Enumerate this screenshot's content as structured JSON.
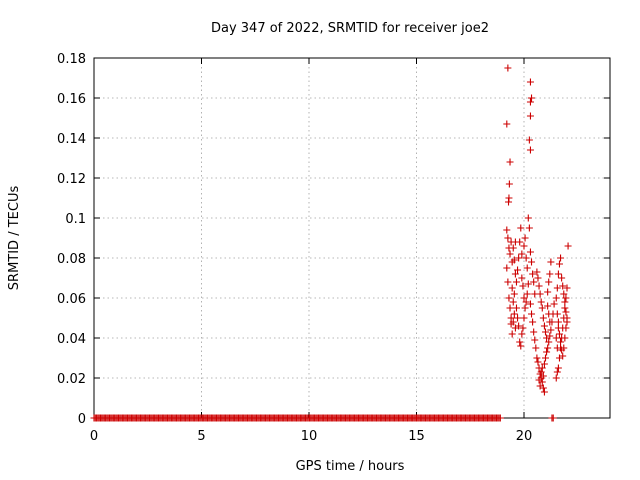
{
  "chart_data": {
    "type": "scatter",
    "title": "Day 347 of 2022, SRMTID for receiver joe2",
    "xlabel": "GPS time / hours",
    "ylabel": "SRMTID / TECUs",
    "xlim": [
      0,
      24
    ],
    "ylim": [
      0,
      0.18
    ],
    "xticks": [
      0,
      5,
      10,
      15,
      20
    ],
    "xtick_labels": [
      "0",
      "5",
      "10",
      "15",
      "20"
    ],
    "yticks": [
      0,
      0.02,
      0.04,
      0.06,
      0.08,
      0.1,
      0.12,
      0.14,
      0.16,
      0.18
    ],
    "ytick_labels": [
      "0",
      "0.02",
      "0.04",
      "0.06",
      "0.08",
      "0.1",
      "0.12",
      "0.14",
      "0.16",
      "0.18"
    ],
    "grid": true,
    "marker": "+",
    "marker_color": "#cc0000",
    "series": [
      {
        "name": "SRMTID",
        "baseline": {
          "description": "points at zero",
          "y": 0,
          "x_ranges": [
            [
              0.0,
              18.9
            ],
            [
              21.3,
              21.4
            ]
          ]
        },
        "points": [
          [
            19.25,
            0.175
          ],
          [
            19.2,
            0.147
          ],
          [
            19.35,
            0.128
          ],
          [
            19.32,
            0.117
          ],
          [
            19.28,
            0.108
          ],
          [
            19.3,
            0.11
          ],
          [
            19.2,
            0.094
          ],
          [
            19.25,
            0.09
          ],
          [
            19.3,
            0.085
          ],
          [
            19.35,
            0.082
          ],
          [
            19.4,
            0.088
          ],
          [
            19.45,
            0.078
          ],
          [
            19.5,
            0.085
          ],
          [
            19.55,
            0.079
          ],
          [
            19.6,
            0.072
          ],
          [
            19.2,
            0.075
          ],
          [
            19.25,
            0.068
          ],
          [
            19.3,
            0.06
          ],
          [
            19.35,
            0.055
          ],
          [
            19.4,
            0.05
          ],
          [
            19.45,
            0.065
          ],
          [
            19.5,
            0.058
          ],
          [
            19.55,
            0.052
          ],
          [
            19.6,
            0.045
          ],
          [
            19.4,
            0.047
          ],
          [
            19.45,
            0.042
          ],
          [
            19.5,
            0.048
          ],
          [
            19.55,
            0.062
          ],
          [
            19.65,
            0.068
          ],
          [
            19.7,
            0.074
          ],
          [
            19.75,
            0.08
          ],
          [
            19.8,
            0.088
          ],
          [
            19.85,
            0.095
          ],
          [
            19.9,
            0.07
          ],
          [
            19.95,
            0.066
          ],
          [
            20.0,
            0.06
          ],
          [
            19.65,
            0.055
          ],
          [
            19.7,
            0.05
          ],
          [
            19.75,
            0.046
          ],
          [
            19.8,
            0.038
          ],
          [
            19.85,
            0.036
          ],
          [
            19.9,
            0.042
          ],
          [
            19.95,
            0.045
          ],
          [
            20.0,
            0.05
          ],
          [
            20.05,
            0.055
          ],
          [
            20.1,
            0.058
          ],
          [
            20.15,
            0.062
          ],
          [
            20.2,
            0.067
          ],
          [
            20.0,
            0.086
          ],
          [
            20.05,
            0.09
          ],
          [
            20.1,
            0.08
          ],
          [
            20.15,
            0.075
          ],
          [
            19.9,
            0.082
          ],
          [
            19.6,
            0.088
          ],
          [
            20.3,
            0.168
          ],
          [
            20.35,
            0.16
          ],
          [
            20.3,
            0.158
          ],
          [
            20.3,
            0.151
          ],
          [
            20.25,
            0.139
          ],
          [
            20.3,
            0.134
          ],
          [
            20.2,
            0.1
          ],
          [
            20.25,
            0.095
          ],
          [
            20.3,
            0.083
          ],
          [
            20.35,
            0.078
          ],
          [
            20.4,
            0.072
          ],
          [
            20.45,
            0.068
          ],
          [
            20.5,
            0.062
          ],
          [
            20.3,
            0.057
          ],
          [
            20.35,
            0.052
          ],
          [
            20.4,
            0.048
          ],
          [
            20.45,
            0.043
          ],
          [
            20.5,
            0.039
          ],
          [
            20.55,
            0.035
          ],
          [
            20.6,
            0.03
          ],
          [
            20.65,
            0.028
          ],
          [
            20.7,
            0.025
          ],
          [
            20.75,
            0.022
          ],
          [
            20.8,
            0.02
          ],
          [
            20.85,
            0.018
          ],
          [
            20.9,
            0.015
          ],
          [
            20.95,
            0.013
          ],
          [
            20.7,
            0.019
          ],
          [
            20.75,
            0.016
          ],
          [
            20.8,
            0.023
          ],
          [
            20.85,
            0.025
          ],
          [
            20.9,
            0.021
          ],
          [
            20.95,
            0.027
          ],
          [
            21.0,
            0.03
          ],
          [
            21.05,
            0.033
          ],
          [
            21.1,
            0.035
          ],
          [
            21.15,
            0.038
          ],
          [
            21.2,
            0.041
          ],
          [
            21.25,
            0.044
          ],
          [
            21.3,
            0.048
          ],
          [
            21.35,
            0.052
          ],
          [
            21.4,
            0.057
          ],
          [
            20.6,
            0.073
          ],
          [
            20.65,
            0.07
          ],
          [
            20.7,
            0.066
          ],
          [
            20.75,
            0.062
          ],
          [
            20.8,
            0.058
          ],
          [
            20.85,
            0.055
          ],
          [
            20.9,
            0.05
          ],
          [
            20.95,
            0.046
          ],
          [
            21.0,
            0.043
          ],
          [
            21.05,
            0.04
          ],
          [
            21.1,
            0.063
          ],
          [
            21.15,
            0.068
          ],
          [
            21.2,
            0.072
          ],
          [
            21.25,
            0.078
          ],
          [
            21.1,
            0.056
          ],
          [
            21.15,
            0.052
          ],
          [
            21.2,
            0.048
          ],
          [
            21.5,
            0.02
          ],
          [
            21.55,
            0.023
          ],
          [
            21.6,
            0.025
          ],
          [
            21.65,
            0.03
          ],
          [
            21.7,
            0.035
          ],
          [
            21.75,
            0.04
          ],
          [
            21.8,
            0.045
          ],
          [
            21.85,
            0.05
          ],
          [
            21.9,
            0.055
          ],
          [
            21.95,
            0.06
          ],
          [
            22.0,
            0.065
          ],
          [
            22.05,
            0.086
          ],
          [
            21.5,
            0.06
          ],
          [
            21.55,
            0.065
          ],
          [
            21.6,
            0.072
          ],
          [
            21.65,
            0.077
          ],
          [
            21.7,
            0.08
          ],
          [
            21.75,
            0.07
          ],
          [
            21.8,
            0.066
          ],
          [
            21.85,
            0.062
          ],
          [
            21.9,
            0.058
          ],
          [
            21.95,
            0.053
          ],
          [
            22.0,
            0.048
          ],
          [
            21.6,
            0.045
          ],
          [
            21.65,
            0.042
          ],
          [
            21.7,
            0.038
          ],
          [
            21.75,
            0.034
          ],
          [
            21.8,
            0.031
          ],
          [
            21.85,
            0.035
          ],
          [
            21.9,
            0.04
          ],
          [
            21.95,
            0.045
          ],
          [
            22.0,
            0.05
          ],
          [
            21.55,
            0.052
          ],
          [
            21.6,
            0.048
          ],
          [
            21.5,
            0.04
          ],
          [
            21.55,
            0.035
          ]
        ]
      }
    ]
  }
}
